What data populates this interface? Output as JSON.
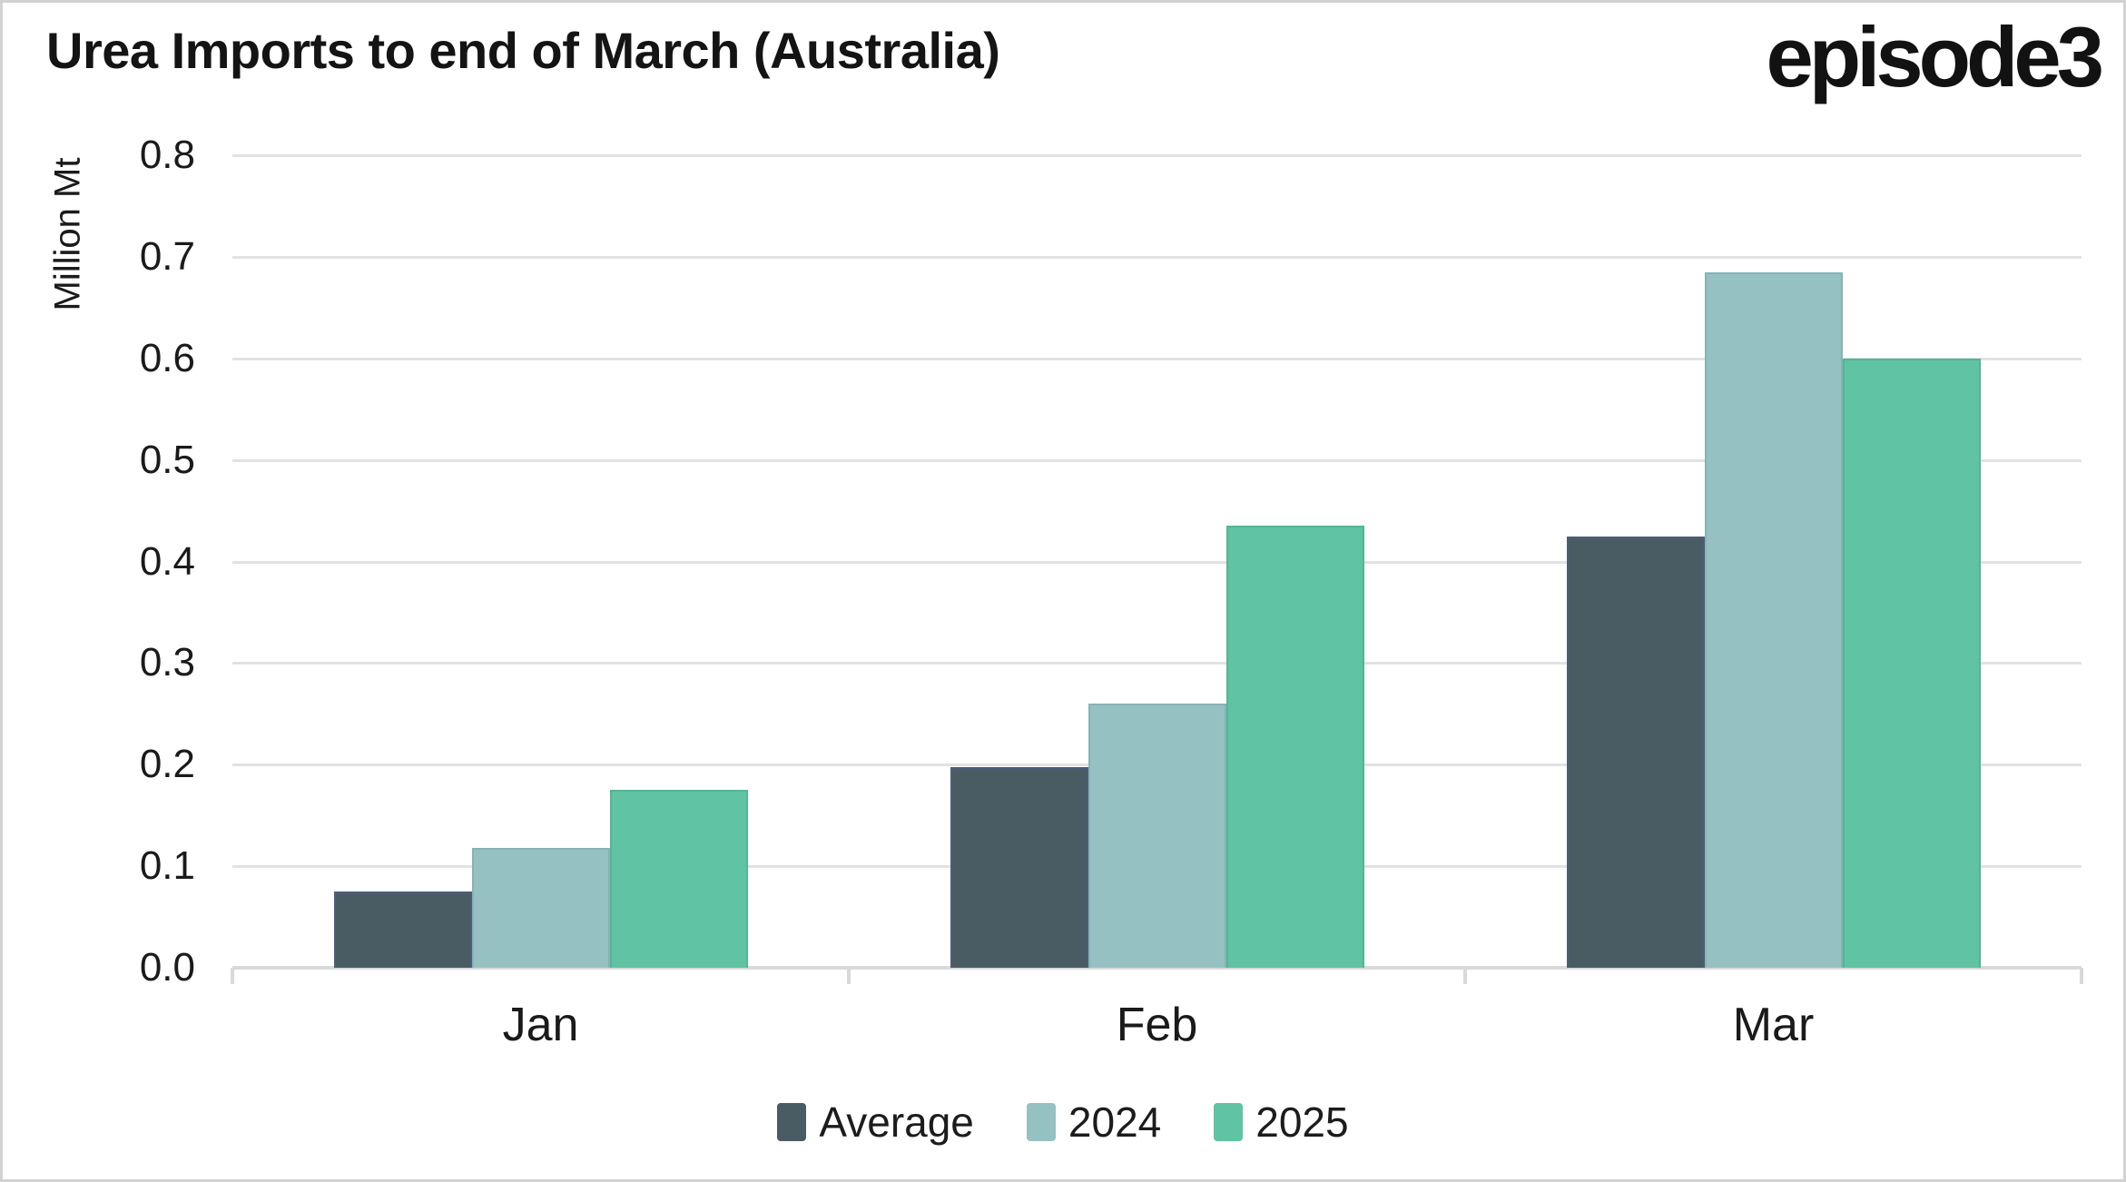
{
  "header": {
    "logo": "episode3"
  },
  "chart_data": {
    "type": "bar",
    "title": "Urea Imports to end of March (Australia)",
    "ylabel": "Million Mt",
    "xlabel": "",
    "categories": [
      "Jan",
      "Feb",
      "Mar"
    ],
    "series": [
      {
        "name": "Average",
        "color": "#4a5c63",
        "border_color": "#4d5c79",
        "values": [
          0.075,
          0.198,
          0.425
        ]
      },
      {
        "name": "2024",
        "color": "#95c1c2",
        "border_color": "#86b3b5",
        "values": [
          0.118,
          0.26,
          0.685
        ]
      },
      {
        "name": "2025",
        "color": "#60c3a3",
        "border_color": "#54b595",
        "values": [
          0.175,
          0.435,
          0.6
        ]
      }
    ],
    "ylim": [
      0,
      0.8
    ],
    "yticks": [
      "0.0",
      "0.1",
      "0.2",
      "0.3",
      "0.4",
      "0.5",
      "0.6",
      "0.7",
      "0.8"
    ],
    "grid": true,
    "gridline_color": "#e2e2e2",
    "axis_color": "#d9d9d9",
    "legend_position": "bottom"
  }
}
